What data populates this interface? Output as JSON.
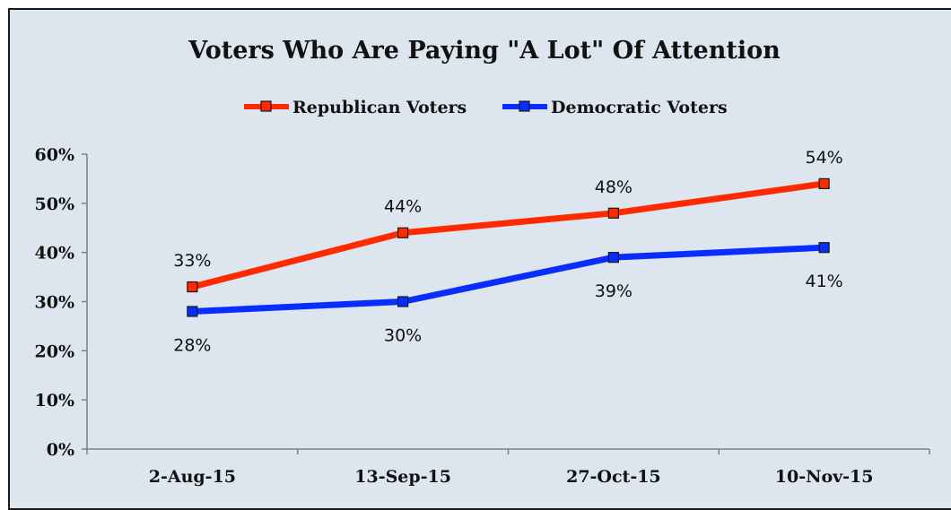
{
  "chart_data": {
    "type": "line",
    "title": "Voters Who Are Paying \"A Lot\" Of Attention",
    "xlabel": "",
    "ylabel": "",
    "categories": [
      "2-Aug-15",
      "13-Sep-15",
      "27-Oct-15",
      "10-Nov-15"
    ],
    "y_ticks": [
      "0%",
      "10%",
      "20%",
      "30%",
      "40%",
      "50%",
      "60%"
    ],
    "ylim": [
      0,
      60
    ],
    "grid": false,
    "legend_position": "top",
    "series": [
      {
        "name": "Republican Voters",
        "color": "#ff2a00",
        "values": [
          33,
          44,
          48,
          54
        ],
        "labels": [
          "33%",
          "44%",
          "48%",
          "54%"
        ],
        "label_position": "above"
      },
      {
        "name": "Democratic Voters",
        "color": "#0a2dff",
        "values": [
          28,
          30,
          39,
          41
        ],
        "labels": [
          "28%",
          "30%",
          "39%",
          "41%"
        ],
        "label_position": "below"
      }
    ]
  }
}
